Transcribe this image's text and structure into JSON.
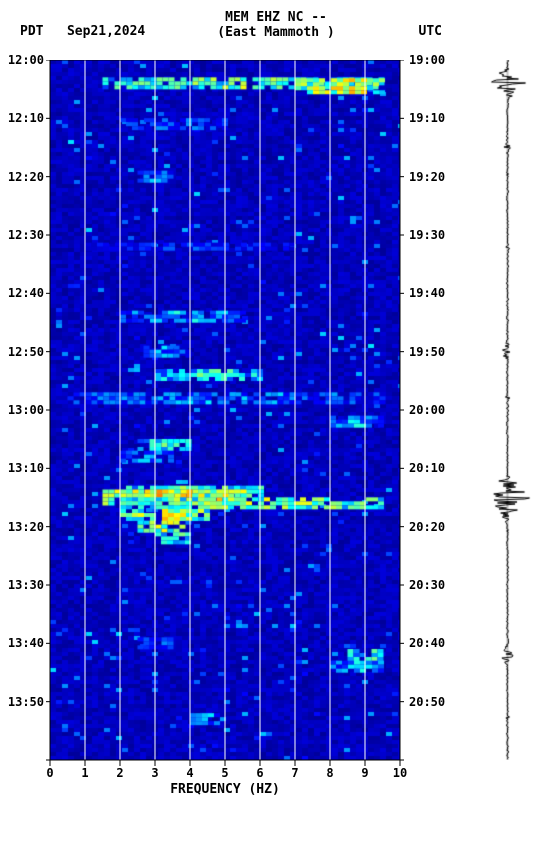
{
  "header": {
    "tz_left": "PDT",
    "date": "Sep21,2024",
    "station_line1": "MEM EHZ NC --",
    "station_line2": "(East Mammoth )",
    "tz_right": "UTC"
  },
  "chart": {
    "type": "spectrogram",
    "xlabel": "FREQUENCY (HZ)",
    "xlim": [
      0,
      10
    ],
    "xticks": [
      0,
      1,
      2,
      3,
      4,
      5,
      6,
      7,
      8,
      9,
      10
    ],
    "left_time_ticks": [
      "12:00",
      "12:10",
      "12:20",
      "12:30",
      "12:40",
      "12:50",
      "13:00",
      "13:10",
      "13:20",
      "13:30",
      "13:40",
      "13:50"
    ],
    "right_time_ticks": [
      "19:00",
      "19:10",
      "19:20",
      "19:30",
      "19:40",
      "19:50",
      "20:00",
      "20:10",
      "20:20",
      "20:30",
      "20:40",
      "20:50"
    ],
    "n_time_rows": 12,
    "time_span_min": 120,
    "background_color": "#00008b",
    "grid_color": "#ffffff",
    "colormap_low": "#000080",
    "colormap_mid1": "#0000ff",
    "colormap_mid2": "#00ffff",
    "colormap_mid3": "#ffff00",
    "colormap_high": "#ff8c00",
    "hotspots": [
      {
        "t": 4,
        "f0": 1.5,
        "f1": 9.5,
        "intensity": 0.55
      },
      {
        "t": 4.5,
        "f0": 7.0,
        "f1": 9.5,
        "intensity": 0.75
      },
      {
        "t": 11,
        "f0": 2.0,
        "f1": 5.0,
        "intensity": 0.25
      },
      {
        "t": 20,
        "f0": 2.5,
        "f1": 3.5,
        "intensity": 0.3
      },
      {
        "t": 32,
        "f0": 1.0,
        "f1": 7.0,
        "intensity": 0.2
      },
      {
        "t": 44,
        "f0": 2.0,
        "f1": 5.5,
        "intensity": 0.35
      },
      {
        "t": 50,
        "f0": 2.5,
        "f1": 4.0,
        "intensity": 0.3
      },
      {
        "t": 54,
        "f0": 3.0,
        "f1": 6.0,
        "intensity": 0.45
      },
      {
        "t": 58,
        "f0": 0.5,
        "f1": 9.5,
        "intensity": 0.3
      },
      {
        "t": 62,
        "f0": 8.0,
        "f1": 9.5,
        "intensity": 0.35
      },
      {
        "t": 66,
        "f0": 2.5,
        "f1": 4.0,
        "intensity": 0.45
      },
      {
        "t": 68,
        "f0": 2.0,
        "f1": 3.5,
        "intensity": 0.3
      },
      {
        "t": 74,
        "f0": 2.0,
        "f1": 6.0,
        "intensity": 0.55
      },
      {
        "t": 75,
        "f0": 1.5,
        "f1": 5.5,
        "intensity": 0.85
      },
      {
        "t": 76,
        "f0": 2.0,
        "f1": 9.5,
        "intensity": 0.6
      },
      {
        "t": 78,
        "f0": 2.0,
        "f1": 4.5,
        "intensity": 0.7
      },
      {
        "t": 80,
        "f0": 2.5,
        "f1": 4.0,
        "intensity": 0.6
      },
      {
        "t": 82,
        "f0": 3.0,
        "f1": 4.0,
        "intensity": 0.5
      },
      {
        "t": 100,
        "f0": 2.5,
        "f1": 3.5,
        "intensity": 0.25
      },
      {
        "t": 102,
        "f0": 8.5,
        "f1": 9.5,
        "intensity": 0.5
      },
      {
        "t": 104,
        "f0": 8.0,
        "f1": 9.5,
        "intensity": 0.35
      },
      {
        "t": 113,
        "f0": 4.0,
        "f1": 5.0,
        "intensity": 0.3
      }
    ],
    "noise_density": 0.25
  },
  "seismogram": {
    "line_color": "#000000",
    "baseline_width": 2,
    "events": [
      {
        "t": 4,
        "amp": 0.9,
        "dur": 3
      },
      {
        "t": 15,
        "amp": 0.2,
        "dur": 1
      },
      {
        "t": 32,
        "amp": 0.15,
        "dur": 1
      },
      {
        "t": 50,
        "amp": 0.3,
        "dur": 2
      },
      {
        "t": 58,
        "amp": 0.2,
        "dur": 1
      },
      {
        "t": 75,
        "amp": 1.0,
        "dur": 4
      },
      {
        "t": 78,
        "amp": 0.35,
        "dur": 2
      },
      {
        "t": 102,
        "amp": 0.4,
        "dur": 2
      },
      {
        "t": 113,
        "amp": 0.15,
        "dur": 1
      }
    ]
  }
}
